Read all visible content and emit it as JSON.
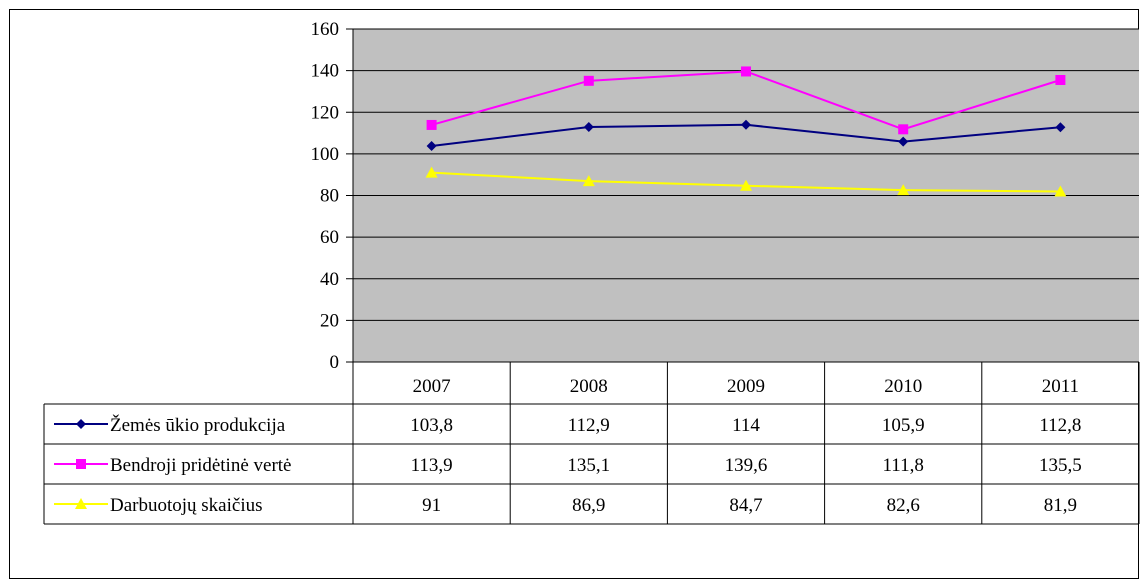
{
  "chart_data": {
    "type": "line",
    "categories": [
      "2007",
      "2008",
      "2009",
      "2010",
      "2011"
    ],
    "series": [
      {
        "name": "Žemės ūkio produkcija",
        "values": [
          103.8,
          112.9,
          114,
          105.9,
          112.8
        ],
        "display": [
          "103,8",
          "112,9",
          "114",
          "105,9",
          "112,8"
        ],
        "color": "#000080",
        "marker": "diamond"
      },
      {
        "name": "Bendroji pridėtinė vertė",
        "values": [
          113.9,
          135.1,
          139.6,
          111.8,
          135.5
        ],
        "display": [
          "113,9",
          "135,1",
          "139,6",
          "111,8",
          "135,5"
        ],
        "color": "#ff00ff",
        "marker": "square"
      },
      {
        "name": "Darbuotojų skaičius",
        "values": [
          91,
          86.9,
          84.7,
          82.6,
          81.9
        ],
        "display": [
          "91",
          "86,9",
          "84,7",
          "82,6",
          "81,9"
        ],
        "color": "#ffff00",
        "marker": "triangle"
      }
    ],
    "yticks": [
      "0",
      "20",
      "40",
      "60",
      "80",
      "100",
      "120",
      "140",
      "160"
    ],
    "ylim": [
      0,
      160
    ],
    "grid": true,
    "plot_background": "#c0c0c0",
    "legend": "data-table"
  }
}
